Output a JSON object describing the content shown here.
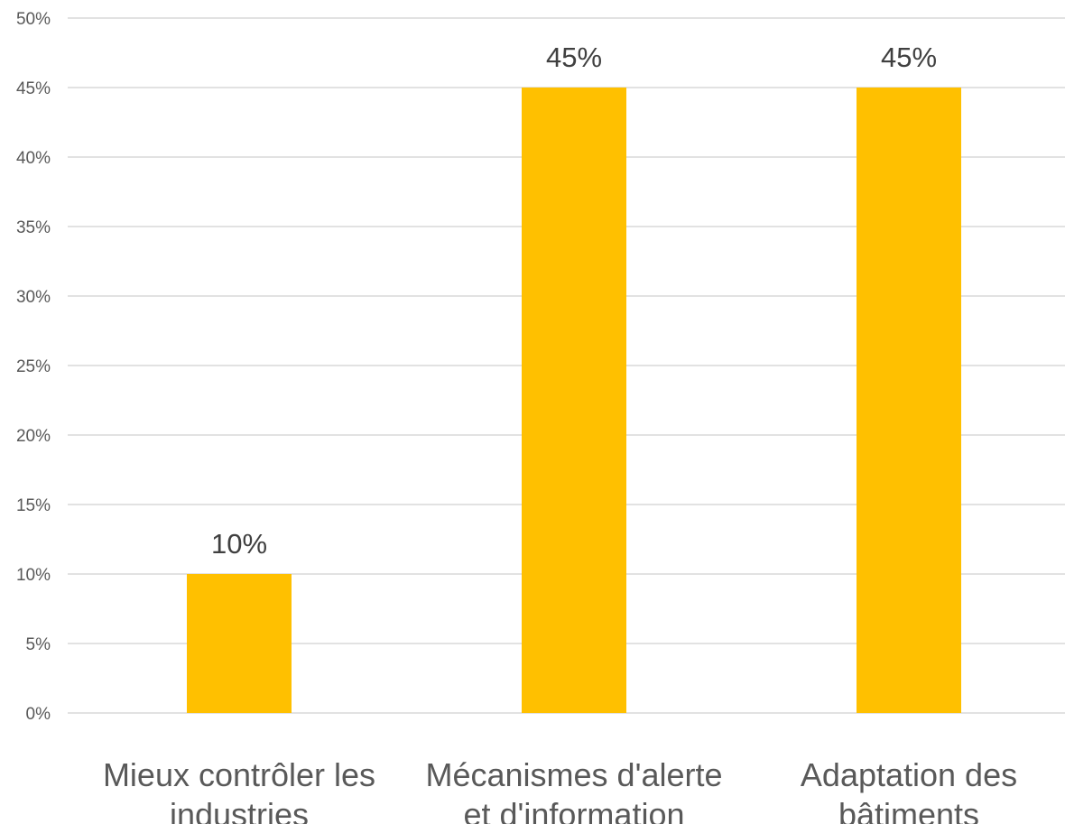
{
  "chart_data": {
    "type": "bar",
    "categories": [
      [
        "Mieux contrôler les",
        "industries"
      ],
      [
        "Mécanismes d'alerte",
        "et d'information"
      ],
      [
        "Adaptation des",
        "bâtiments"
      ]
    ],
    "values": [
      10,
      45,
      45
    ],
    "data_labels": [
      "10%",
      "45%",
      "45%"
    ],
    "y_ticks": [
      "0%",
      "5%",
      "10%",
      "15%",
      "20%",
      "25%",
      "30%",
      "35%",
      "40%",
      "45%",
      "50%"
    ],
    "ylim": [
      0,
      50
    ],
    "y_step": 5,
    "grid": true,
    "legend": "none",
    "title": "",
    "xlabel": "",
    "ylabel": ""
  },
  "colors": {
    "bar": "#FFC000",
    "grid": "#D9D9D9",
    "tick_text": "#595959",
    "data_label_text": "#404040"
  }
}
